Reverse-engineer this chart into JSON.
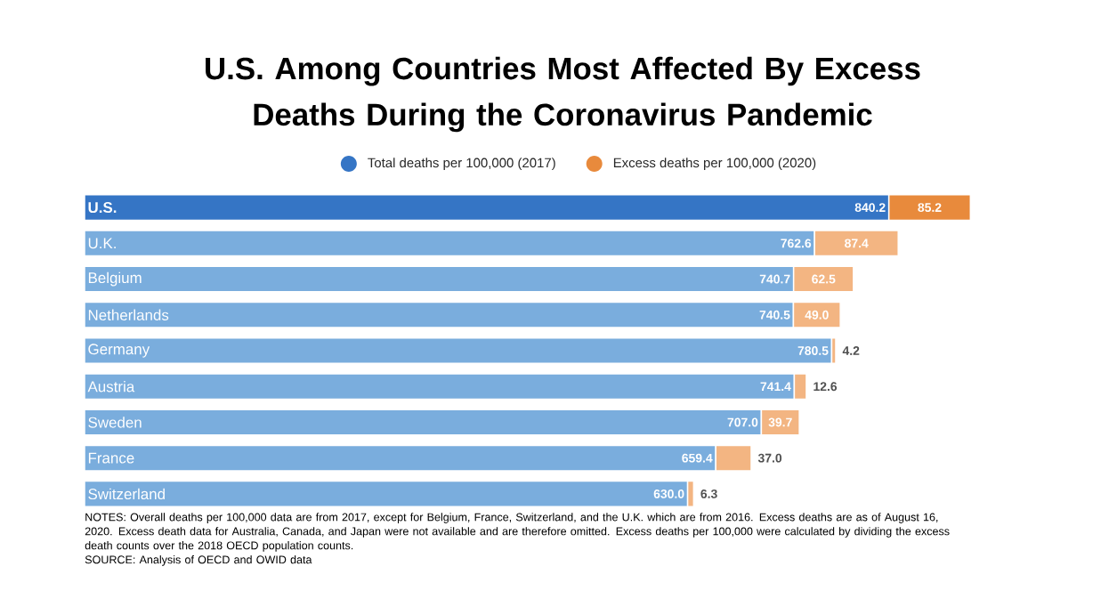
{
  "chart_data": {
    "type": "bar",
    "orientation": "horizontal",
    "stacked": true,
    "legend": "top",
    "title": "U.S. Among Countries Most Affected By Excess Deaths During the Coronavirus Pandemic",
    "categories": [
      "U.S.",
      "U.K.",
      "Belgium",
      "Netherlands",
      "Germany",
      "Austria",
      "Sweden",
      "France",
      "Switzerland"
    ],
    "series": [
      {
        "name": "Total deaths per 100,000 (2017)",
        "color": "#3575c5",
        "colors": [
          "#3575c5",
          "#7aaddd",
          "#7aaddd",
          "#7aaddd",
          "#7aaddd",
          "#7aaddd",
          "#7aaddd",
          "#7aaddd",
          "#7aaddd"
        ],
        "values": [
          840.2,
          762.6,
          740.7,
          740.5,
          780.5,
          741.4,
          707.0,
          659.4,
          630.0
        ],
        "value_labels": [
          "840.2",
          "762.6",
          "740.7",
          "740.5",
          "780.5",
          "741.4",
          "707.0",
          "659.4",
          "630.0"
        ]
      },
      {
        "name": "Excess deaths per 100,000 (2020)",
        "color": "#e88a3c",
        "colors": [
          "#e88a3c",
          "#f3b582",
          "#f3b582",
          "#f3b582",
          "#f3b582",
          "#f3b582",
          "#f3b582",
          "#f3b582",
          "#f3b582"
        ],
        "values": [
          85.2,
          87.4,
          62.5,
          49.0,
          4.2,
          12.6,
          39.7,
          37.0,
          6.3
        ],
        "value_labels": [
          "85.2",
          "87.4",
          "62.5",
          "49.0",
          "4.2",
          "12.6",
          "39.7",
          "37.0",
          "6.3"
        ]
      }
    ],
    "annotations": [
      "NOTES: Overall deaths per 100,000 data are from 2017, except for Belgium, France, Switzerland, and the U.K. which are from 2016.  Excess deaths are as of August 16, 2020. Excess death data for Australia, Canada, and Japan were not available and are therefore omitted. Excess deaths per 100,000  were calculated by dividing the excess death counts over the 2018 OECD population counts.",
      "SOURCE: Analysis of OECD and OWID data"
    ]
  }
}
